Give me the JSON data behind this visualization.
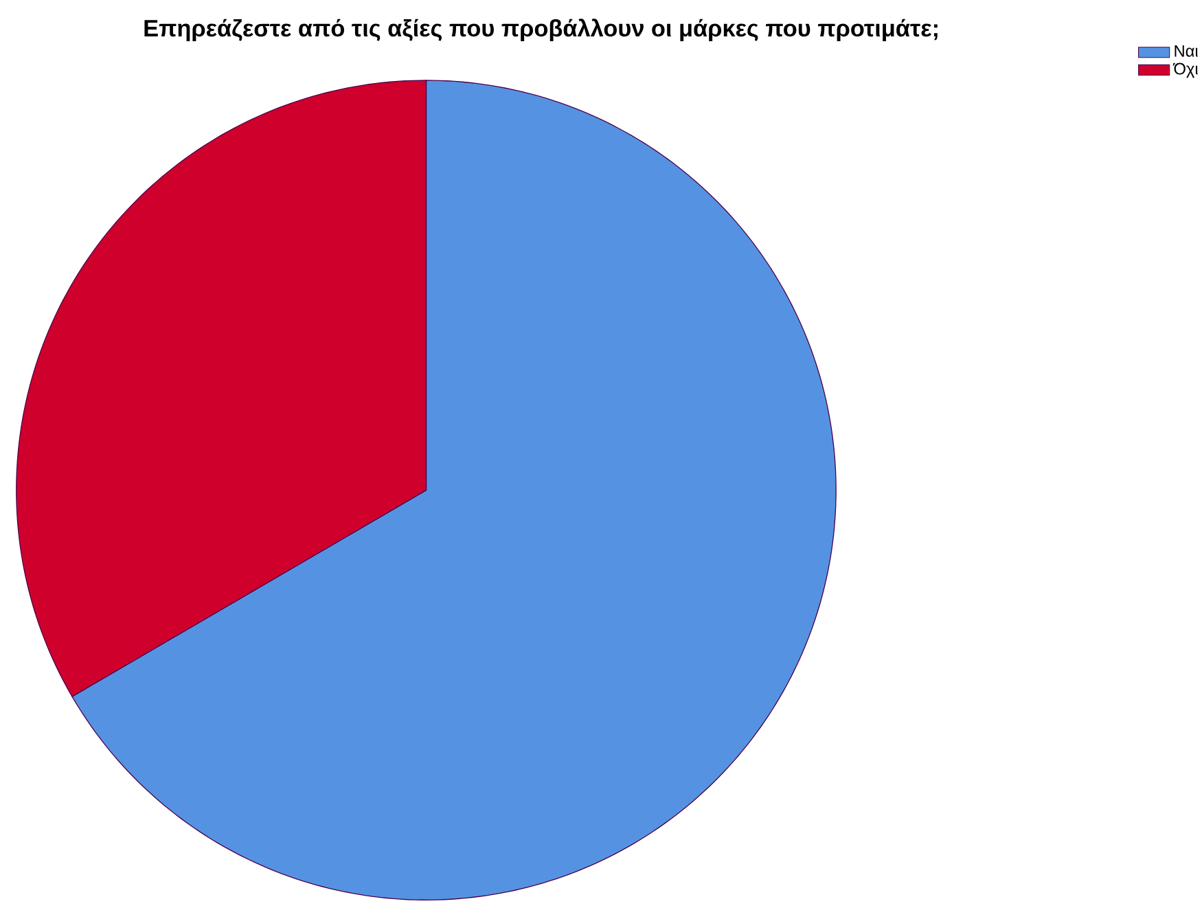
{
  "chart_data": {
    "type": "pie",
    "title": "Επηρεάζεστε από τις αξίες που προβάλλουν οι μάρκες που προτιμάτε;",
    "categories": [
      "Ναι",
      "Όχι"
    ],
    "values": [
      66.6,
      33.4
    ],
    "colors": [
      "#5593e2",
      "#d0002d"
    ],
    "legend": "top right"
  }
}
